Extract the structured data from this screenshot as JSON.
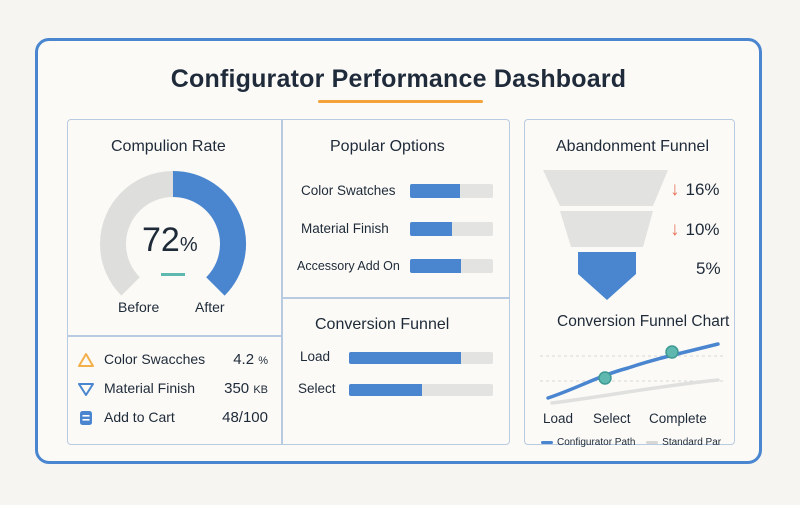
{
  "dashboard": {
    "title": "Configurator Performance Dashboard"
  },
  "completion": {
    "title": "Compulion Rate",
    "value": "72",
    "unit": "%",
    "gauge_fraction": 0.72,
    "before_label": "Before",
    "after_label": "After"
  },
  "metrics": [
    {
      "label": "Color Swacches",
      "value": "4.2",
      "unit": "%",
      "icon": "warning-triangle-icon",
      "color": "#f3b04a"
    },
    {
      "label": "Material Finish",
      "value": "350",
      "unit": "KB",
      "icon": "down-triangle-icon",
      "color": "#4a86d0"
    },
    {
      "label": "Add to Cart",
      "value": "48/100",
      "unit": "",
      "icon": "list-icon",
      "color": "#4a86d0"
    }
  ],
  "popular_options": {
    "title": "Popular Options",
    "items": [
      {
        "label": "Color Swatches",
        "fill": 0.6
      },
      {
        "label": "Material  Finish",
        "fill": 0.51
      },
      {
        "label": "Accessory Add On",
        "fill": 0.62
      }
    ]
  },
  "conversion_funnel": {
    "title": "Conversion Funnel",
    "items": [
      {
        "label": "Load",
        "fill": 0.78
      },
      {
        "label": "Select",
        "fill": 0.51
      }
    ]
  },
  "abandonment": {
    "title": "Abandonment Funnel",
    "stages": [
      {
        "value": "16%",
        "arrow": true
      },
      {
        "value": "10%",
        "arrow": true
      },
      {
        "value": "5%",
        "arrow": false
      }
    ],
    "arrow_glyph": "↓"
  },
  "funnel_chart": {
    "title": "Conversion Funnel Chart",
    "x_labels": [
      "Load",
      "Select",
      "Complete"
    ],
    "legend": [
      {
        "label": "Configurator Path",
        "color": "#4a86d0"
      },
      {
        "label": "Standard Par",
        "color": "#d6d6d4"
      }
    ]
  },
  "colors": {
    "accent": "#4a86d0",
    "highlight": "#f3a33a",
    "alert": "#e8735a",
    "marker": "#5fb8b0"
  }
}
